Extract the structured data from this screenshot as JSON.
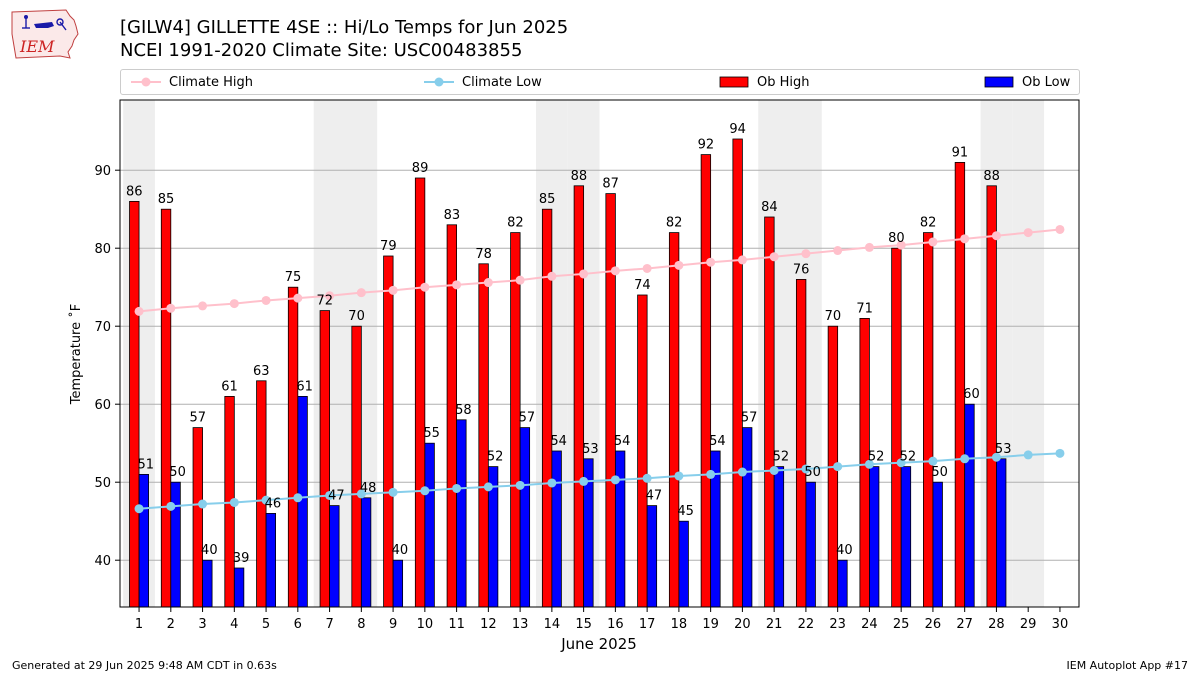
{
  "header": {
    "title": "[GILW4] GILLETTE 4SE :: Hi/Lo Temps for Jun 2025",
    "subtitle": "NCEI 1991-2020 Climate Site: USC00483855",
    "logo_text": "IEM"
  },
  "footer": {
    "generated": "Generated at 29 Jun 2025 9:48 AM CDT in 0.63s",
    "app": "IEM Autoplot App #17"
  },
  "colors": {
    "ob_high": "#ff0000",
    "ob_low": "#0000ff",
    "climate_high": "#ffc0cb",
    "climate_low": "#87ceeb",
    "weekend_shade": "#eeeeee",
    "grid": "#b0b0b0"
  },
  "chart_data": {
    "type": "bar",
    "xlabel": "June 2025",
    "ylabel": "Temperature ˚F",
    "ylim": [
      34,
      99
    ],
    "yticks": [
      40,
      50,
      60,
      70,
      80,
      90
    ],
    "grid": "horizontal",
    "legend_position": "top",
    "categories": [
      "1",
      "2",
      "3",
      "4",
      "5",
      "6",
      "7",
      "8",
      "9",
      "10",
      "11",
      "12",
      "13",
      "14",
      "15",
      "16",
      "17",
      "18",
      "19",
      "20",
      "21",
      "22",
      "23",
      "24",
      "25",
      "26",
      "27",
      "28",
      "29",
      "30"
    ],
    "shaded_days": [
      1,
      7,
      8,
      14,
      15,
      21,
      22,
      28,
      29
    ],
    "series": [
      {
        "name": "Climate High",
        "kind": "line",
        "values": [
          71.9,
          72.3,
          72.6,
          72.9,
          73.3,
          73.6,
          73.9,
          74.3,
          74.6,
          75.0,
          75.3,
          75.6,
          75.9,
          76.4,
          76.7,
          77.1,
          77.4,
          77.8,
          78.2,
          78.5,
          78.9,
          79.3,
          79.7,
          80.1,
          80.4,
          80.8,
          81.2,
          81.6,
          82.0,
          82.4
        ]
      },
      {
        "name": "Climate Low",
        "kind": "line",
        "values": [
          46.6,
          46.9,
          47.2,
          47.4,
          47.7,
          48.0,
          48.3,
          48.5,
          48.7,
          48.9,
          49.2,
          49.4,
          49.6,
          49.9,
          50.1,
          50.3,
          50.5,
          50.8,
          51.0,
          51.3,
          51.5,
          51.7,
          52.0,
          52.3,
          52.5,
          52.7,
          53.0,
          53.2,
          53.5,
          53.7
        ]
      },
      {
        "name": "Ob High",
        "kind": "bar",
        "values": [
          86,
          85,
          57,
          61,
          63,
          75,
          72,
          70,
          79,
          89,
          83,
          78,
          82,
          85,
          88,
          87,
          74,
          82,
          92,
          94,
          84,
          76,
          70,
          71,
          80,
          82,
          91,
          88,
          null,
          null
        ]
      },
      {
        "name": "Ob Low",
        "kind": "bar",
        "values": [
          51,
          50,
          40,
          39,
          46,
          61,
          47,
          48,
          40,
          55,
          58,
          52,
          57,
          54,
          53,
          54,
          47,
          45,
          54,
          57,
          52,
          50,
          40,
          52,
          52,
          50,
          60,
          53,
          null,
          null
        ]
      }
    ]
  }
}
